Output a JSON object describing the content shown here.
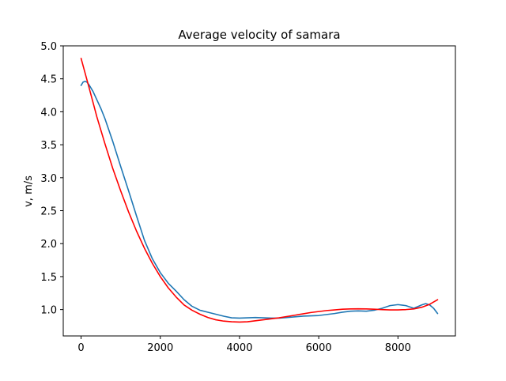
{
  "chart_data": {
    "type": "line",
    "title": "Average velocity of samara",
    "xlabel": "",
    "ylabel": "v, m/s",
    "xlim": [
      -450,
      9450
    ],
    "ylim": [
      0.6,
      5.0
    ],
    "xticks": [
      0,
      2000,
      4000,
      6000,
      8000
    ],
    "xtick_labels": [
      "0",
      "2000",
      "4000",
      "6000",
      "8000"
    ],
    "yticks": [
      1.0,
      1.5,
      2.0,
      2.5,
      3.0,
      3.5,
      4.0,
      4.5,
      5.0
    ],
    "ytick_labels": [
      "1.0",
      "1.5",
      "2.0",
      "2.5",
      "3.0",
      "3.5",
      "4.0",
      "4.5",
      "5.0"
    ],
    "grid": false,
    "legend": "none",
    "series": [
      {
        "color": "#1f77b4",
        "x": [
          0,
          50,
          100,
          150,
          200,
          300,
          400,
          500,
          600,
          800,
          1000,
          1200,
          1400,
          1600,
          1800,
          2000,
          2200,
          2400,
          2600,
          2800,
          3000,
          3200,
          3400,
          3600,
          3800,
          4000,
          4200,
          4400,
          4600,
          4800,
          5000,
          5200,
          5400,
          5600,
          5800,
          6000,
          6200,
          6400,
          6600,
          6800,
          7000,
          7200,
          7400,
          7600,
          7800,
          8000,
          8200,
          8400,
          8600,
          8700,
          8800,
          8900,
          9000
        ],
        "y": [
          4.4,
          4.45,
          4.46,
          4.45,
          4.41,
          4.31,
          4.18,
          4.05,
          3.9,
          3.55,
          3.17,
          2.8,
          2.42,
          2.05,
          1.77,
          1.56,
          1.4,
          1.28,
          1.15,
          1.05,
          0.99,
          0.96,
          0.93,
          0.9,
          0.875,
          0.87,
          0.875,
          0.88,
          0.875,
          0.87,
          0.87,
          0.88,
          0.89,
          0.9,
          0.905,
          0.91,
          0.925,
          0.94,
          0.96,
          0.975,
          0.98,
          0.975,
          0.99,
          1.02,
          1.06,
          1.075,
          1.06,
          1.02,
          1.07,
          1.09,
          1.07,
          1.02,
          0.94
        ]
      },
      {
        "color": "#ff0000",
        "x": [
          0,
          200,
          400,
          600,
          800,
          1000,
          1200,
          1400,
          1600,
          1800,
          2000,
          2200,
          2400,
          2600,
          2800,
          3000,
          3200,
          3400,
          3600,
          3800,
          4000,
          4200,
          4400,
          4600,
          4800,
          5000,
          5200,
          5400,
          5600,
          5800,
          6000,
          6200,
          6400,
          6600,
          6800,
          7000,
          7200,
          7400,
          7600,
          7800,
          8000,
          8200,
          8400,
          8600,
          8800,
          9000
        ],
        "y": [
          4.81,
          4.37,
          3.92,
          3.52,
          3.14,
          2.8,
          2.48,
          2.19,
          1.93,
          1.7,
          1.5,
          1.33,
          1.19,
          1.07,
          0.99,
          0.93,
          0.88,
          0.845,
          0.825,
          0.815,
          0.81,
          0.815,
          0.83,
          0.845,
          0.86,
          0.875,
          0.895,
          0.915,
          0.935,
          0.955,
          0.97,
          0.985,
          0.995,
          1.005,
          1.01,
          1.012,
          1.01,
          1.005,
          1.0,
          0.995,
          0.995,
          1.0,
          1.01,
          1.035,
          1.08,
          1.15
        ]
      }
    ]
  }
}
